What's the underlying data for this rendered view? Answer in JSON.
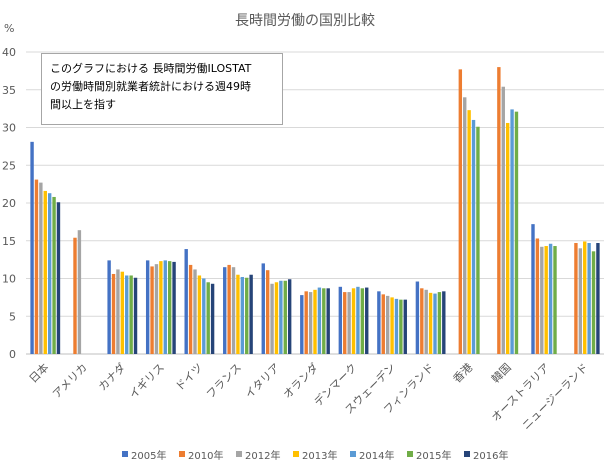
{
  "chart_data": {
    "type": "bar",
    "title": "長時間労働の国別比較",
    "ylabel": "%",
    "ylim": [
      0,
      40
    ],
    "yticks": [
      0,
      5,
      10,
      15,
      20,
      25,
      30,
      35,
      40
    ],
    "grid": true,
    "legend_position": "bottom",
    "annotation": "このグラフにおける 長時間労働ILOSTAT の労働時間別就業者統計における週49時 間以上を指す",
    "annotation_lines": [
      "このグラフにおける 長時間労働ILOSTAT",
      "の労働時間別就業者統計における週49時",
      "間以上を指す"
    ],
    "categories": [
      "日本",
      "アメリカ",
      "カナダ",
      "イギリス",
      "ドイツ",
      "フランス",
      "イタリア",
      "オランダ",
      "デンマーク",
      "スウェーデン",
      "フィンランド",
      "香港",
      "韓国",
      "オーストラリア",
      "ニュージーランド"
    ],
    "series": [
      {
        "name": "2005年",
        "color": "#4472C4",
        "values": [
          28.1,
          null,
          12.4,
          12.4,
          13.9,
          11.5,
          12.0,
          7.8,
          8.9,
          8.3,
          9.6,
          null,
          null,
          17.2,
          null
        ]
      },
      {
        "name": "2010年",
        "color": "#ED7D31",
        "values": [
          23.1,
          15.4,
          10.6,
          11.6,
          11.8,
          11.8,
          11.1,
          8.3,
          8.2,
          7.9,
          8.7,
          37.7,
          38.0,
          15.3,
          14.7
        ]
      },
      {
        "name": "2012年",
        "color": "#A5A5A5",
        "values": [
          22.7,
          16.4,
          11.2,
          11.9,
          11.2,
          11.5,
          9.3,
          8.2,
          8.2,
          7.7,
          8.5,
          34.0,
          35.4,
          14.2,
          14.0
        ]
      },
      {
        "name": "2013年",
        "color": "#FFC000",
        "values": [
          21.6,
          null,
          10.9,
          12.3,
          10.4,
          10.5,
          9.5,
          8.5,
          8.7,
          7.5,
          8.1,
          32.3,
          30.6,
          14.3,
          14.9
        ]
      },
      {
        "name": "2014年",
        "color": "#5B9BD5",
        "values": [
          21.3,
          null,
          10.4,
          12.4,
          10.0,
          10.2,
          9.7,
          8.8,
          8.9,
          7.3,
          8.0,
          31.0,
          32.4,
          14.6,
          14.7
        ]
      },
      {
        "name": "2015年",
        "color": "#70AD47",
        "values": [
          20.8,
          null,
          10.4,
          12.3,
          9.5,
          10.1,
          9.7,
          8.7,
          8.7,
          7.2,
          8.2,
          30.1,
          32.1,
          14.3,
          13.6
        ]
      },
      {
        "name": "2016年",
        "color": "#264478",
        "values": [
          20.1,
          null,
          10.1,
          12.2,
          9.3,
          10.5,
          9.9,
          8.7,
          8.8,
          7.2,
          8.3,
          null,
          null,
          null,
          14.7
        ]
      }
    ]
  }
}
